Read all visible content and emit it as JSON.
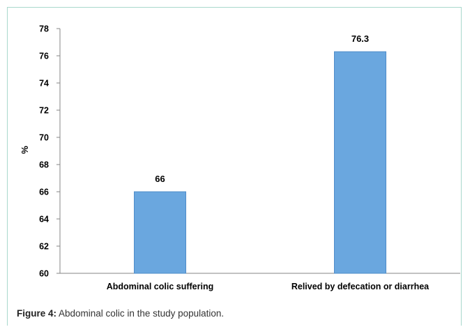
{
  "caption": {
    "label": "Figure 4:",
    "text": " Abdominal colic in the study population."
  },
  "colors": {
    "bar_fill": "#6aa7df",
    "bar_stroke": "#4f8cc9",
    "frame": "#a8d8cc"
  },
  "chart_data": {
    "type": "bar",
    "categories": [
      "Abdominal colic suffering",
      "Relived by defecation or diarrhea"
    ],
    "values": [
      66,
      76.3
    ],
    "value_labels": [
      "66",
      "76.3"
    ],
    "title": "",
    "xlabel": "",
    "ylabel": "%",
    "ylim": [
      60,
      78
    ],
    "yticks": [
      60,
      62,
      64,
      66,
      68,
      70,
      72,
      74,
      76,
      78
    ],
    "grid": false,
    "legend": false
  }
}
